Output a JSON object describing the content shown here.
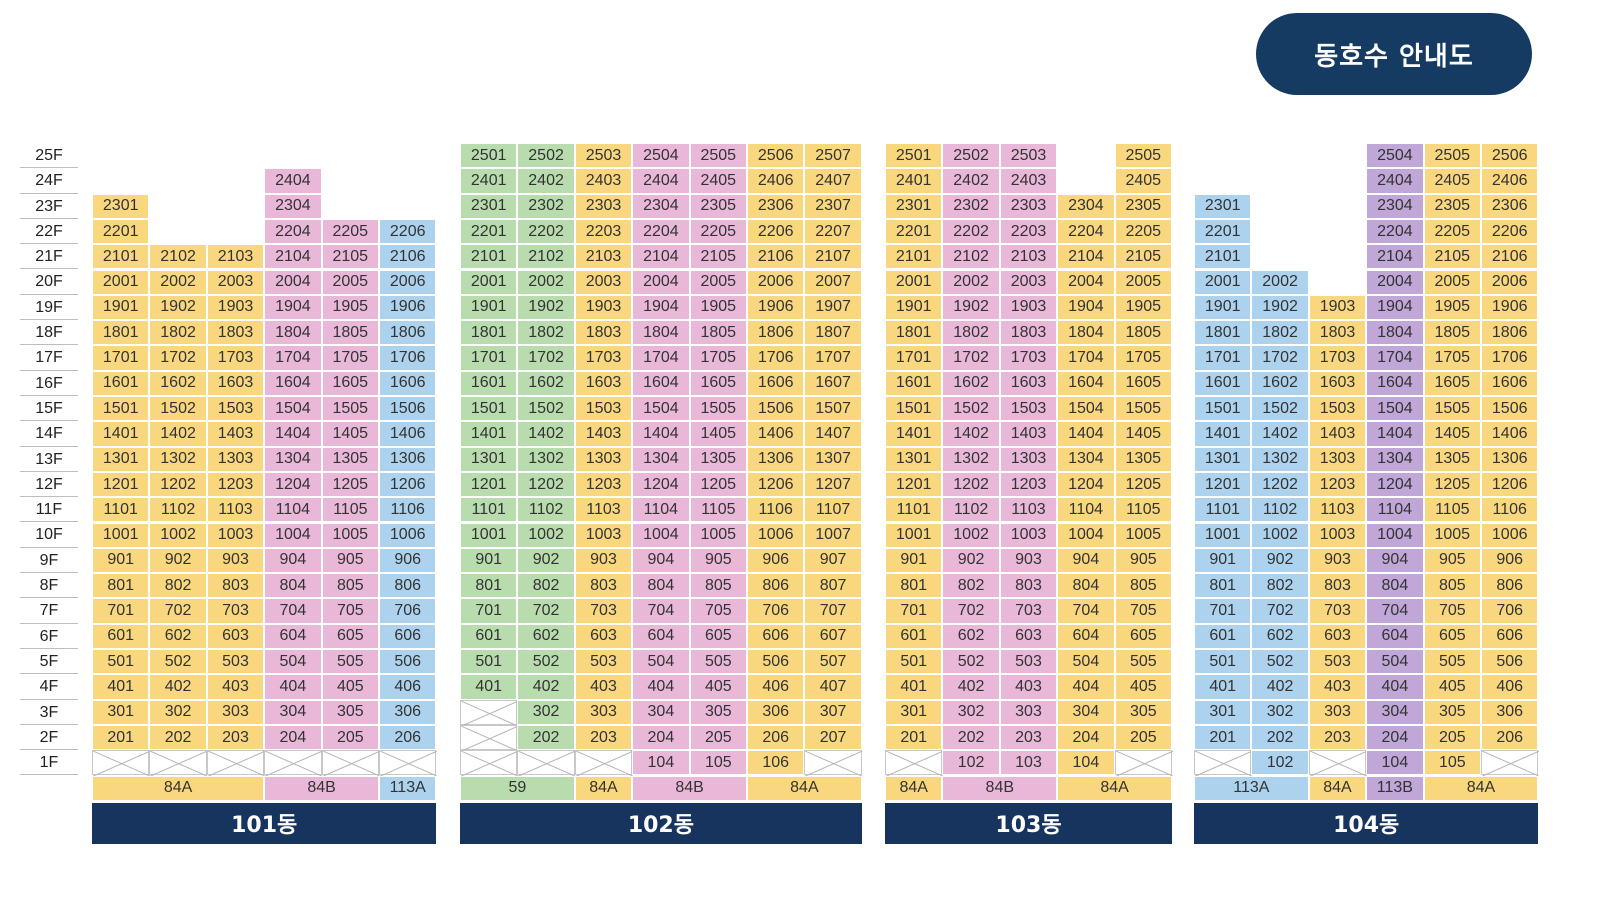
{
  "title": "동호수 안내도",
  "colors": {
    "yellow": "#f9d77e",
    "pink": "#e9b8d9",
    "blue": "#acd2ee",
    "green": "#b9dcae",
    "purple": "#c0a7d8",
    "navy": "#17345e",
    "pill": "#163b62"
  },
  "floors": [
    "25F",
    "24F",
    "23F",
    "22F",
    "21F",
    "20F",
    "19F",
    "18F",
    "17F",
    "16F",
    "15F",
    "14F",
    "13F",
    "12F",
    "11F",
    "10F",
    "9F",
    "8F",
    "7F",
    "6F",
    "5F",
    "4F",
    "3F",
    "2F",
    "1F"
  ],
  "buildings": [
    {
      "name": "101동",
      "line_colors": [
        "yellow",
        "yellow",
        "yellow",
        "pink",
        "pink",
        "blue"
      ],
      "line_top": [
        23,
        21,
        21,
        24,
        22,
        22
      ],
      "line_bottom": [
        2,
        2,
        2,
        2,
        2,
        2
      ],
      "first_floor": [
        null,
        null,
        null,
        null,
        null,
        null
      ],
      "types": [
        {
          "label": "84A",
          "span": 3,
          "color": "yellow"
        },
        {
          "label": "84B",
          "span": 2,
          "color": "pink"
        },
        {
          "label": "113A",
          "span": 1,
          "color": "blue"
        }
      ]
    },
    {
      "name": "102동",
      "line_colors": [
        "green",
        "green",
        "yellow",
        "pink",
        "pink",
        "yellow",
        "yellow"
      ],
      "line_top": [
        25,
        25,
        25,
        25,
        25,
        25,
        25
      ],
      "line_bottom": [
        4,
        2,
        2,
        2,
        2,
        2,
        2
      ],
      "first_floor": [
        null,
        null,
        null,
        "104",
        "105",
        "106",
        null
      ],
      "types": [
        {
          "label": "59",
          "span": 2,
          "color": "green"
        },
        {
          "label": "84A",
          "span": 1,
          "color": "yellow"
        },
        {
          "label": "84B",
          "span": 2,
          "color": "pink"
        },
        {
          "label": "84A",
          "span": 2,
          "color": "yellow"
        }
      ]
    },
    {
      "name": "103동",
      "line_colors": [
        "yellow",
        "pink",
        "pink",
        "yellow",
        "yellow"
      ],
      "line_top": [
        25,
        25,
        25,
        23,
        25
      ],
      "line_bottom": [
        2,
        2,
        2,
        2,
        2
      ],
      "first_floor": [
        null,
        "102",
        "103",
        "104",
        null
      ],
      "types": [
        {
          "label": "84A",
          "span": 1,
          "color": "yellow"
        },
        {
          "label": "84B",
          "span": 2,
          "color": "pink"
        },
        {
          "label": "84A",
          "span": 2,
          "color": "yellow"
        }
      ]
    },
    {
      "name": "104동",
      "line_colors": [
        "blue",
        "blue",
        "yellow",
        "purple",
        "yellow",
        "yellow"
      ],
      "line_top": [
        23,
        20,
        19,
        25,
        25,
        25
      ],
      "line_bottom": [
        2,
        2,
        2,
        2,
        2,
        2
      ],
      "first_floor": [
        null,
        "102",
        null,
        "104",
        "105",
        null
      ],
      "types": [
        {
          "label": "113A",
          "span": 2,
          "color": "blue"
        },
        {
          "label": "84A",
          "span": 1,
          "color": "yellow"
        },
        {
          "label": "113B",
          "span": 1,
          "color": "purple"
        },
        {
          "label": "84A",
          "span": 2,
          "color": "yellow"
        }
      ]
    }
  ]
}
